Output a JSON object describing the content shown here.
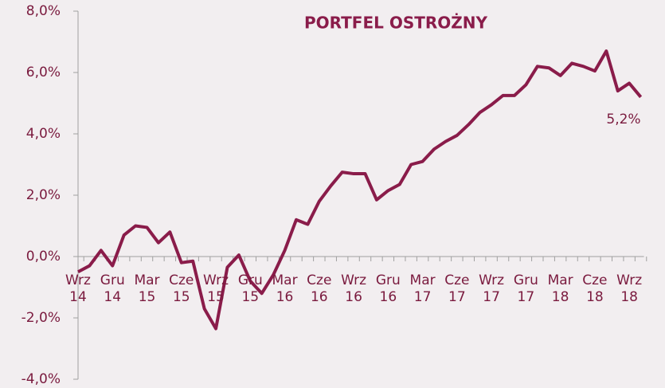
{
  "chart_data": {
    "type": "line",
    "title": "PORTFEL OSTROŻNY",
    "categories": [
      "Wrz 14",
      null,
      null,
      "Gru 14",
      null,
      null,
      "Mar 15",
      null,
      null,
      "Cze 15",
      null,
      null,
      "Wrz 15",
      null,
      null,
      "Gru 15",
      null,
      null,
      "Mar 16",
      null,
      null,
      "Cze 16",
      null,
      null,
      "Wrz 16",
      null,
      null,
      "Gru 16",
      null,
      null,
      "Mar 17",
      null,
      null,
      "Cze 17",
      null,
      null,
      "Wrz 17",
      null,
      null,
      "Gru 17",
      null,
      null,
      "Mar 18",
      null,
      null,
      "Cze 18",
      null,
      null,
      "Wrz 18",
      null
    ],
    "values": [
      -0.5,
      -0.3,
      0.2,
      -0.3,
      0.7,
      1.0,
      0.95,
      0.45,
      0.8,
      -0.2,
      -0.15,
      -1.7,
      -2.35,
      -0.35,
      0.05,
      -0.8,
      -1.2,
      -0.6,
      0.2,
      1.2,
      1.05,
      1.8,
      2.3,
      2.75,
      2.7,
      2.7,
      1.85,
      2.15,
      2.35,
      3.0,
      3.1,
      3.5,
      3.75,
      3.95,
      4.3,
      4.7,
      4.95,
      5.25,
      5.25,
      5.6,
      6.2,
      6.15,
      5.9,
      6.3,
      6.2,
      6.05,
      6.7,
      5.4,
      5.65,
      5.2
    ],
    "value_labels": [
      null,
      null,
      null,
      null,
      null,
      null,
      null,
      null,
      null,
      null,
      null,
      null,
      null,
      null,
      null,
      null,
      null,
      null,
      null,
      null,
      null,
      null,
      null,
      null,
      null,
      null,
      null,
      null,
      null,
      null,
      null,
      null,
      null,
      null,
      null,
      null,
      null,
      null,
      null,
      null,
      null,
      null,
      null,
      null,
      null,
      null,
      null,
      null,
      null,
      "5,2%"
    ],
    "color": "#8a1c4a",
    "ylim": [
      -4,
      8
    ],
    "yticks": [
      {
        "value": -4,
        "label": "-4,0%"
      },
      {
        "value": -2,
        "label": "-2,0%"
      },
      {
        "value": 0,
        "label": "0,0%"
      },
      {
        "value": 2,
        "label": "2,0%"
      },
      {
        "value": 4,
        "label": "4,0%"
      },
      {
        "value": 6,
        "label": "6,0%"
      },
      {
        "value": 8,
        "label": "8,0%"
      }
    ],
    "grid": false
  }
}
